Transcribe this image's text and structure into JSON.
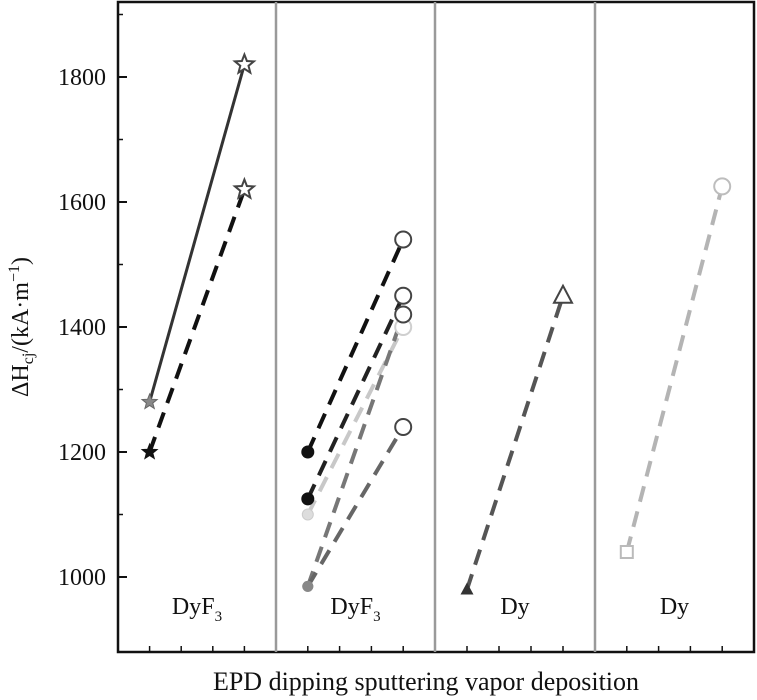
{
  "chart_data": {
    "type": "line",
    "xlabel": "EPD dipping sputtering vapor deposition",
    "ylabel": {
      "prefix": "ΔH",
      "sub": "cj",
      "suffix": "/(kA·m",
      "sup": "−1",
      "close": ")"
    },
    "ylim": [
      880,
      1920
    ],
    "yticks": [
      1000,
      1200,
      1400,
      1600,
      1800
    ],
    "x_categories": [
      "EPD",
      "dipping",
      "sputtering",
      "vapor deposition"
    ],
    "panels": [
      {
        "name": "EPD",
        "label": "DyF",
        "label_sub": "3"
      },
      {
        "name": "dipping",
        "label": "DyF",
        "label_sub": "3"
      },
      {
        "name": "sputtering",
        "label": "Dy",
        "label_sub": ""
      },
      {
        "name": "vapor deposition",
        "label": "Dy",
        "label_sub": ""
      }
    ],
    "series": [
      {
        "panel": 0,
        "values": [
          1280,
          1820
        ],
        "style": "solid",
        "color": "#333333",
        "start_marker": "star-gray",
        "end_marker": "star-open"
      },
      {
        "panel": 0,
        "values": [
          1200,
          1620
        ],
        "style": "dashed",
        "color": "#111111",
        "start_marker": "star-filled",
        "end_marker": "star-open"
      },
      {
        "panel": 1,
        "values": [
          1200,
          1540
        ],
        "style": "dashed",
        "color": "#111111",
        "start_marker": "circle-filled",
        "end_marker": "circle-open"
      },
      {
        "panel": 1,
        "values": [
          1125,
          1450
        ],
        "style": "dashed",
        "color": "#222222",
        "start_marker": "circle-filled",
        "end_marker": "circle-open"
      },
      {
        "panel": 1,
        "values": [
          1100,
          1400
        ],
        "style": "dashed",
        "color": "#c8c8c8",
        "start_marker": "circle-light",
        "end_marker": "circle-light-open"
      },
      {
        "panel": 1,
        "values": [
          985,
          1420
        ],
        "style": "dashed",
        "color": "#777777",
        "start_marker": "circle-gray",
        "end_marker": "circle-open"
      },
      {
        "panel": 1,
        "values": [
          985,
          1240
        ],
        "style": "dashed",
        "color": "#666666",
        "start_marker": "circle-gray",
        "end_marker": "circle-open"
      },
      {
        "panel": 2,
        "values": [
          980,
          1450
        ],
        "style": "dashed",
        "color": "#555555",
        "start_marker": "triangle-filled",
        "end_marker": "triangle-open"
      },
      {
        "panel": 3,
        "values": [
          1040,
          1625
        ],
        "style": "dashed",
        "color": "#b4b4b4",
        "start_marker": "square-open",
        "end_marker": "circle-open-light"
      }
    ],
    "grid": false,
    "legend": "none"
  }
}
